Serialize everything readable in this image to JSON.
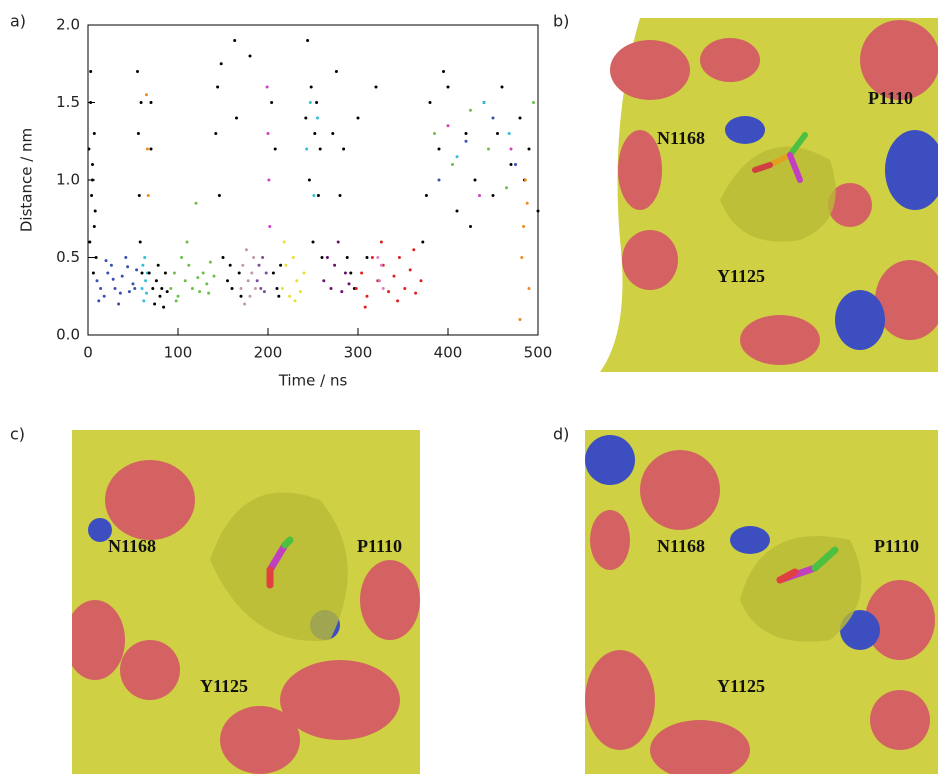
{
  "chart_data": {
    "type": "scatter",
    "panel_label": "a)",
    "x_label": "Time / ns",
    "y_label": "Distance / nm",
    "xlim": [
      0,
      500
    ],
    "ylim": [
      0,
      2
    ],
    "xticks": [
      0,
      100,
      200,
      300,
      400,
      500
    ],
    "yticks": [
      {
        "value": 0,
        "label": "0.0"
      },
      0.5,
      {
        "value": 1,
        "label": "1.0"
      },
      1.5,
      {
        "value": 2,
        "label": "2.0"
      }
    ],
    "series": [
      {
        "color": "#000000",
        "x": [
          1,
          2,
          3,
          4,
          5,
          6,
          7,
          8,
          9,
          3,
          5,
          7
        ],
        "values": [
          1.2,
          0.6,
          1.5,
          0.9,
          1.1,
          0.4,
          1.3,
          0.8,
          0.5,
          1.7,
          1.0,
          0.7
        ]
      },
      {
        "color": "#3a4fb0",
        "x": [
          10,
          14,
          18,
          22,
          26,
          30,
          34,
          38,
          42,
          46,
          50,
          54,
          12,
          20,
          28,
          36,
          44,
          52
        ],
        "values": [
          0.35,
          0.3,
          0.25,
          0.4,
          0.45,
          0.3,
          0.2,
          0.38,
          0.5,
          0.28,
          0.33,
          0.42,
          0.22,
          0.48,
          0.36,
          0.27,
          0.44,
          0.3
        ]
      },
      {
        "color": "#000000",
        "x": [
          55,
          56,
          57,
          58,
          59,
          60
        ],
        "values": [
          1.7,
          1.3,
          0.9,
          0.6,
          1.5,
          0.4
        ]
      },
      {
        "color": "#30c0d8",
        "x": [
          60,
          61,
          62,
          63,
          64,
          65,
          66
        ],
        "values": [
          0.3,
          0.45,
          0.22,
          0.5,
          0.35,
          0.27,
          0.4
        ]
      },
      {
        "color": "#f08a20",
        "x": [
          65,
          66,
          67
        ],
        "values": [
          1.55,
          1.2,
          0.9
        ]
      },
      {
        "color": "#000000",
        "x": [
          68,
          70,
          72,
          74,
          76,
          78,
          80,
          82,
          84,
          86,
          88,
          70
        ],
        "values": [
          0.4,
          1.5,
          0.3,
          0.2,
          0.35,
          0.45,
          0.25,
          0.3,
          0.18,
          0.4,
          0.28,
          1.2
        ]
      },
      {
        "color": "#6cc04a",
        "x": [
          92,
          96,
          100,
          104,
          108,
          112,
          116,
          120,
          124,
          128,
          132,
          136,
          140,
          98,
          110,
          122,
          134
        ],
        "values": [
          0.3,
          0.4,
          0.25,
          0.5,
          0.35,
          0.45,
          0.3,
          0.85,
          0.28,
          0.4,
          0.33,
          0.47,
          0.38,
          0.22,
          0.6,
          0.37,
          0.27
        ]
      },
      {
        "color": "#000000",
        "x": [
          142,
          144,
          146,
          148,
          150,
          155,
          160,
          163,
          165,
          168,
          170,
          158
        ],
        "values": [
          1.3,
          1.6,
          0.9,
          1.75,
          0.5,
          0.35,
          0.3,
          1.9,
          1.4,
          0.4,
          0.25,
          0.45
        ]
      },
      {
        "color": "#c49a9a",
        "x": [
          170,
          172,
          174,
          176,
          178,
          180,
          182,
          184,
          186
        ],
        "values": [
          0.3,
          0.45,
          0.2,
          0.55,
          0.35,
          0.25,
          0.4,
          0.5,
          0.3
        ]
      },
      {
        "color": "#7b4ea0",
        "x": [
          188,
          190,
          192,
          194,
          196,
          198
        ],
        "values": [
          0.35,
          0.45,
          0.3,
          0.5,
          0.28,
          0.4
        ]
      },
      {
        "color": "#d040c0",
        "x": [
          199,
          200,
          201,
          202
        ],
        "values": [
          1.6,
          1.3,
          1.0,
          0.7
        ]
      },
      {
        "color": "#000000",
        "x": [
          204,
          206,
          208,
          210,
          212,
          214,
          180
        ],
        "values": [
          1.5,
          0.4,
          1.2,
          0.3,
          0.25,
          0.45,
          1.8
        ]
      },
      {
        "color": "#e8e030",
        "x": [
          216,
          220,
          224,
          228,
          232,
          236,
          240,
          218,
          230
        ],
        "values": [
          0.3,
          0.45,
          0.25,
          0.5,
          0.35,
          0.28,
          0.4,
          0.6,
          0.22
        ]
      },
      {
        "color": "#000000",
        "x": [
          242,
          244,
          246,
          248,
          250,
          252,
          254,
          256,
          258,
          260
        ],
        "values": [
          1.4,
          1.9,
          1.0,
          1.6,
          0.6,
          1.3,
          1.5,
          0.9,
          1.2,
          0.5
        ]
      },
      {
        "color": "#30c0d8",
        "x": [
          243,
          247,
          251,
          255
        ],
        "values": [
          1.2,
          1.5,
          0.9,
          1.4
        ]
      },
      {
        "color": "#6a0f6a",
        "x": [
          262,
          266,
          270,
          274,
          278,
          282,
          286,
          290
        ],
        "values": [
          0.35,
          0.5,
          0.3,
          0.45,
          0.6,
          0.28,
          0.4,
          0.33
        ]
      },
      {
        "color": "#000000",
        "x": [
          272,
          276,
          280,
          284,
          288,
          292,
          296,
          300,
          310,
          320
        ],
        "values": [
          1.3,
          1.7,
          0.9,
          1.2,
          0.5,
          0.4,
          0.3,
          1.4,
          0.5,
          1.6
        ]
      },
      {
        "color": "#e02020",
        "x": [
          298,
          304,
          310,
          316,
          322,
          328,
          334,
          340,
          346,
          352,
          358,
          364,
          370,
          308,
          326,
          344,
          362
        ],
        "values": [
          0.3,
          0.4,
          0.25,
          0.5,
          0.35,
          0.45,
          0.28,
          0.38,
          0.5,
          0.3,
          0.42,
          0.27,
          0.35,
          0.18,
          0.6,
          0.22,
          0.55
        ]
      },
      {
        "color": "#e080c0",
        "x": [
          322,
          324,
          326,
          328
        ],
        "values": [
          0.5,
          0.35,
          0.45,
          0.3
        ]
      },
      {
        "color": "#000000",
        "x": [
          372,
          376,
          380,
          390,
          400,
          410,
          420,
          430,
          440,
          450,
          460,
          470,
          480,
          490,
          500,
          395,
          425,
          455,
          485
        ],
        "values": [
          0.6,
          0.9,
          1.5,
          1.2,
          1.6,
          0.8,
          1.3,
          1.0,
          1.5,
          0.9,
          1.6,
          1.1,
          1.4,
          1.2,
          0.8,
          1.7,
          0.7,
          1.3,
          1.0
        ]
      },
      {
        "color": "#6cc04a",
        "x": [
          385,
          405,
          425,
          445,
          465,
          495
        ],
        "values": [
          1.3,
          1.1,
          1.45,
          1.2,
          0.95,
          1.5
        ]
      },
      {
        "color": "#3a4fb0",
        "x": [
          390,
          420,
          450,
          475
        ],
        "values": [
          1.0,
          1.25,
          1.4,
          1.1
        ]
      },
      {
        "color": "#d040c0",
        "x": [
          400,
          435,
          470
        ],
        "values": [
          1.35,
          0.9,
          1.2
        ]
      },
      {
        "color": "#f08a20",
        "x": [
          480,
          482,
          484,
          486,
          488,
          490
        ],
        "values": [
          0.1,
          0.5,
          0.7,
          1.0,
          0.85,
          0.3
        ]
      },
      {
        "color": "#30c0d8",
        "x": [
          410,
          440,
          468
        ],
        "values": [
          1.15,
          1.5,
          1.3
        ]
      }
    ]
  },
  "structures": [
    {
      "label": "b)",
      "residues": [
        "N1168",
        "P1110",
        "Y1125"
      ]
    },
    {
      "label": "c)",
      "residues": [
        "N1168",
        "P1110",
        "Y1125"
      ]
    },
    {
      "label": "d)",
      "residues": [
        "N1168",
        "P1110",
        "Y1125"
      ]
    }
  ]
}
